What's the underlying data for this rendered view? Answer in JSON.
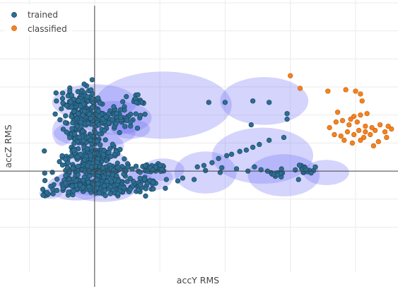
{
  "chart_data": {
    "type": "scatter",
    "title": "",
    "xlabel": "accY RMS",
    "ylabel": "accZ RMS",
    "xlim": [
      -2.9,
      9.3
    ],
    "ylim": [
      -3.6,
      6.1
    ],
    "grid": true,
    "zero_lines": true,
    "legend_position": "top-left",
    "ellipse_color": "#6f6ff5",
    "series": [
      {
        "name": "trained",
        "color": "#2b6e93",
        "edge": "#1f4660",
        "clusters": [
          {
            "cx": -0.4,
            "cy": 2.5,
            "rx": 0.55,
            "ry": 0.5,
            "n": 110,
            "seed": 1
          },
          {
            "cx": 0.15,
            "cy": 1.9,
            "rx": 1.2,
            "ry": 0.4,
            "n": 150,
            "seed": 2
          },
          {
            "cx": 1.3,
            "cy": 2.5,
            "rx": 0.25,
            "ry": 0.18,
            "n": 14,
            "seed": 3
          },
          {
            "cx": -0.3,
            "cy": 1.2,
            "rx": 0.6,
            "ry": 0.45,
            "n": 60,
            "seed": 4
          },
          {
            "cx": 0.0,
            "cy": 0.55,
            "rx": 0.85,
            "ry": 0.35,
            "n": 130,
            "seed": 5
          },
          {
            "cx": 0.05,
            "cy": 0.0,
            "rx": 1.1,
            "ry": 0.3,
            "n": 160,
            "seed": 6
          },
          {
            "cx": 0.0,
            "cy": -0.55,
            "rx": 1.4,
            "ry": 0.25,
            "n": 170,
            "seed": 7
          },
          {
            "cx": 1.8,
            "cy": 0.1,
            "rx": 0.55,
            "ry": 0.2,
            "n": 30,
            "seed": 8
          },
          {
            "cx": 1.4,
            "cy": -0.4,
            "rx": 0.6,
            "ry": 0.25,
            "n": 30,
            "seed": 9
          },
          {
            "cx": 6.5,
            "cy": 0.05,
            "rx": 0.3,
            "ry": 0.15,
            "n": 16,
            "seed": 10
          },
          {
            "cx": 5.6,
            "cy": -0.1,
            "rx": 0.35,
            "ry": 0.15,
            "n": 12,
            "seed": 11
          }
        ],
        "points": [
          [
            -1.55,
            -0.82
          ],
          [
            -1.5,
            -0.78
          ],
          [
            -1.45,
            -0.85
          ],
          [
            -1.48,
            -0.8
          ],
          [
            -1.52,
            -0.88
          ],
          [
            -1.42,
            -0.82
          ],
          [
            -1.58,
            -0.86
          ],
          [
            -1.46,
            -0.76
          ],
          [
            3.5,
            2.45
          ],
          [
            4.0,
            2.45
          ],
          [
            4.85,
            2.5
          ],
          [
            5.35,
            2.45
          ],
          [
            5.9,
            2.05
          ],
          [
            4.8,
            1.65
          ],
          [
            5.9,
            1.85
          ],
          [
            5.8,
            1.2
          ],
          [
            5.35,
            1.1
          ],
          [
            5.05,
            0.95
          ],
          [
            4.85,
            0.85
          ],
          [
            4.65,
            0.75
          ],
          [
            4.45,
            0.7
          ],
          [
            4.2,
            0.6
          ],
          [
            4.05,
            0.55
          ],
          [
            3.8,
            0.45
          ],
          [
            3.6,
            0.3
          ],
          [
            3.35,
            0.2
          ],
          [
            3.15,
            0.15
          ],
          [
            4.9,
            0.15
          ],
          [
            5.1,
            0.05
          ],
          [
            5.3,
            0.0
          ],
          [
            4.7,
            0.0
          ],
          [
            4.35,
            0.08
          ],
          [
            3.4,
            0.02
          ],
          [
            3.85,
            -0.05
          ],
          [
            3.9,
            0.12
          ],
          [
            6.25,
            -0.3
          ],
          [
            3.05,
            -0.3
          ],
          [
            2.7,
            -0.25
          ],
          [
            2.55,
            -0.35
          ],
          [
            2.2,
            -0.3
          ]
        ]
      },
      {
        "name": "classified",
        "color": "#f5821f",
        "edge": "#c86410",
        "points": [
          [
            6.0,
            3.4
          ],
          [
            6.3,
            2.95
          ],
          [
            7.15,
            2.85
          ],
          [
            7.7,
            2.9
          ],
          [
            8.0,
            2.85
          ],
          [
            8.15,
            2.75
          ],
          [
            8.2,
            2.5
          ],
          [
            7.45,
            2.1
          ],
          [
            7.4,
            1.75
          ],
          [
            7.6,
            1.8
          ],
          [
            7.8,
            1.65
          ],
          [
            8.05,
            1.75
          ],
          [
            8.3,
            1.6
          ],
          [
            7.95,
            1.95
          ],
          [
            8.15,
            2.0
          ],
          [
            8.35,
            2.05
          ],
          [
            7.85,
            1.85
          ],
          [
            8.5,
            1.55
          ],
          [
            8.75,
            1.65
          ],
          [
            9.0,
            1.6
          ],
          [
            9.1,
            1.5
          ],
          [
            8.9,
            1.4
          ],
          [
            8.6,
            1.45
          ],
          [
            7.2,
            1.55
          ],
          [
            7.55,
            1.25
          ],
          [
            7.75,
            1.4
          ],
          [
            7.95,
            1.3
          ],
          [
            8.25,
            1.2
          ],
          [
            8.45,
            1.3
          ],
          [
            8.15,
            1.1
          ],
          [
            7.9,
            1.0
          ],
          [
            7.65,
            1.1
          ],
          [
            8.7,
            1.05
          ],
          [
            8.55,
            0.9
          ],
          [
            8.95,
            1.2
          ],
          [
            8.3,
            1.4
          ],
          [
            8.1,
            1.45
          ],
          [
            7.35,
            1.3
          ]
        ]
      }
    ],
    "ellipses": [
      {
        "cx": 0.0,
        "cy": 2.45,
        "rx": 1.3,
        "ry": 0.65
      },
      {
        "cx": 2.1,
        "cy": 2.35,
        "rx": 2.1,
        "ry": 1.2
      },
      {
        "cx": 0.0,
        "cy": 1.35,
        "rx": 1.25,
        "ry": 0.5
      },
      {
        "cx": 0.6,
        "cy": 1.9,
        "rx": 1.15,
        "ry": 0.6
      },
      {
        "cx": 1.1,
        "cy": 1.5,
        "rx": 0.6,
        "ry": 0.35
      },
      {
        "cx": 0.15,
        "cy": 0.9,
        "rx": 0.75,
        "ry": 0.5
      },
      {
        "cx": 0.1,
        "cy": 0.3,
        "rx": 0.95,
        "ry": 0.45
      },
      {
        "cx": 0.3,
        "cy": -0.35,
        "rx": 1.5,
        "ry": 0.55
      },
      {
        "cx": -0.55,
        "cy": -0.55,
        "rx": 0.9,
        "ry": 0.5
      },
      {
        "cx": 0.25,
        "cy": -0.65,
        "rx": 1.0,
        "ry": 0.45
      },
      {
        "cx": 1.7,
        "cy": -0.25,
        "rx": 0.7,
        "ry": 0.45
      },
      {
        "cx": 2.1,
        "cy": 0.05,
        "rx": 0.65,
        "ry": 0.4
      },
      {
        "cx": 3.4,
        "cy": -0.05,
        "rx": 0.95,
        "ry": 0.75
      },
      {
        "cx": 5.2,
        "cy": 2.5,
        "rx": 1.35,
        "ry": 0.85
      },
      {
        "cx": 5.15,
        "cy": 0.55,
        "rx": 1.55,
        "ry": 1.0
      },
      {
        "cx": 5.8,
        "cy": -0.15,
        "rx": 1.1,
        "ry": 0.75
      },
      {
        "cx": 7.1,
        "cy": -0.05,
        "rx": 0.7,
        "ry": 0.45
      },
      {
        "cx": -1.35,
        "cy": -0.8,
        "rx": 0.35,
        "ry": 0.18
      },
      {
        "cx": -1.0,
        "cy": 1.4,
        "rx": 0.3,
        "ry": 0.5
      }
    ]
  }
}
